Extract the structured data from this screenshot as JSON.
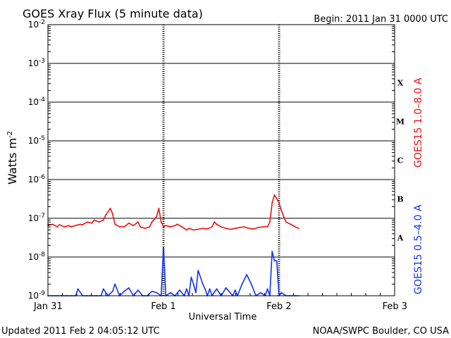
{
  "chart_data": {
    "type": "line",
    "title": "GOES Xray Flux (5 minute data)",
    "begin_label": "Begin:  2011 Jan 31 0000 UTC",
    "xlabel": "Universal Time",
    "ylabel": "Watts m",
    "ylabel_superscript": "-2",
    "yscale": "log",
    "ylim": [
      1e-09,
      0.01
    ],
    "xlim_days": [
      0,
      3
    ],
    "x_tick_labels": [
      "Jan 31",
      "Feb 1",
      "Feb 2",
      "Feb 3"
    ],
    "y_tick_labels": [
      {
        "base": "10",
        "exp": "-2"
      },
      {
        "base": "10",
        "exp": "-3"
      },
      {
        "base": "10",
        "exp": "-4"
      },
      {
        "base": "10",
        "exp": "-5"
      },
      {
        "base": "10",
        "exp": "-6"
      },
      {
        "base": "10",
        "exp": "-7"
      },
      {
        "base": "10",
        "exp": "-8"
      },
      {
        "base": "10",
        "exp": "-9"
      }
    ],
    "flare_classes": [
      "X",
      "M",
      "C",
      "B",
      "A"
    ],
    "grid": true,
    "series": [
      {
        "name": "GOES15 1.0–8.0 A",
        "color": "#ee1111",
        "x": [
          0.0,
          0.04,
          0.08,
          0.1,
          0.14,
          0.18,
          0.2,
          0.24,
          0.28,
          0.3,
          0.34,
          0.38,
          0.4,
          0.44,
          0.48,
          0.5,
          0.54,
          0.56,
          0.58,
          0.62,
          0.66,
          0.7,
          0.74,
          0.78,
          0.8,
          0.84,
          0.88,
          0.9,
          0.94,
          0.96,
          0.98,
          1.0,
          1.02,
          1.06,
          1.1,
          1.12,
          1.16,
          1.2,
          1.22,
          1.26,
          1.3,
          1.34,
          1.38,
          1.42,
          1.44,
          1.46,
          1.5,
          1.54,
          1.58,
          1.62,
          1.66,
          1.7,
          1.74,
          1.78,
          1.82,
          1.86,
          1.9,
          1.92,
          1.94,
          1.96,
          1.98,
          2.0,
          2.02,
          2.04,
          2.06,
          2.1,
          2.14,
          2.17
        ],
        "y": [
          6.5e-08,
          7e-08,
          6e-08,
          6.8e-08,
          6e-08,
          6.5e-08,
          6e-08,
          6.5e-08,
          7e-08,
          6.8e-08,
          8e-08,
          7.5e-08,
          9e-08,
          8e-08,
          9e-08,
          1.2e-07,
          1.8e-07,
          1.3e-07,
          7e-08,
          6e-08,
          6e-08,
          7.5e-08,
          6.5e-08,
          8e-08,
          6e-08,
          5.5e-08,
          6e-08,
          8e-08,
          1.1e-07,
          1.8e-07,
          8e-08,
          6e-08,
          6.5e-08,
          6e-08,
          6.5e-08,
          7e-08,
          6e-08,
          5e-08,
          5.5e-08,
          5e-08,
          5.2e-08,
          5.5e-08,
          5.3e-08,
          6e-08,
          8e-08,
          7e-08,
          6e-08,
          5.5e-08,
          5.2e-08,
          5.5e-08,
          5.8e-08,
          6e-08,
          5.5e-08,
          5.3e-08,
          5.8e-08,
          6e-08,
          6e-08,
          8e-08,
          2.5e-07,
          4e-07,
          3.2e-07,
          2.5e-07,
          1.6e-07,
          1.1e-07,
          8e-08,
          7e-08,
          6e-08,
          5.5e-08
        ]
      },
      {
        "name": "GOES15 0.5–4.0 A",
        "color": "#1133ee",
        "x": [
          0.0,
          0.04,
          0.08,
          0.12,
          0.16,
          0.2,
          0.24,
          0.26,
          0.3,
          0.34,
          0.38,
          0.42,
          0.46,
          0.48,
          0.52,
          0.56,
          0.58,
          0.62,
          0.66,
          0.7,
          0.74,
          0.78,
          0.82,
          0.86,
          0.9,
          0.94,
          0.98,
          1.0,
          1.02,
          1.06,
          1.1,
          1.14,
          1.18,
          1.2,
          1.22,
          1.24,
          1.26,
          1.28,
          1.3,
          1.32,
          1.34,
          1.36,
          1.38,
          1.4,
          1.42,
          1.46,
          1.5,
          1.54,
          1.6,
          1.62,
          1.64,
          1.68,
          1.72,
          1.76,
          1.8,
          1.84,
          1.88,
          1.9,
          1.92,
          1.94,
          1.96,
          1.98,
          2.0,
          2.02,
          2.06,
          2.1,
          2.14,
          2.17
        ],
        "y": [
          1e-09,
          1e-09,
          1e-09,
          1e-09,
          1e-09,
          1e-09,
          1e-09,
          1.5e-09,
          1e-09,
          1e-09,
          1e-09,
          1e-09,
          1e-09,
          1.5e-09,
          1e-09,
          1.3e-09,
          2e-09,
          1e-09,
          1.3e-09,
          1.6e-09,
          1e-09,
          1.4e-09,
          1e-09,
          1e-09,
          1.3e-09,
          1.2e-09,
          1e-09,
          1.8e-08,
          1e-09,
          1.2e-09,
          1e-09,
          1.4e-09,
          1e-09,
          1.5e-09,
          1e-09,
          3e-09,
          2e-09,
          1.2e-09,
          4.5e-09,
          3e-09,
          2e-09,
          1.5e-09,
          1e-09,
          1.5e-09,
          1e-09,
          1.5e-09,
          1e-09,
          1.6e-09,
          1e-09,
          1.4e-09,
          1e-09,
          2e-09,
          3.5e-09,
          2e-09,
          1e-09,
          1.2e-09,
          1e-09,
          1.5e-09,
          1e-09,
          1.4e-08,
          8e-09,
          8e-09,
          1e-09,
          1.2e-09,
          1e-09,
          1e-09,
          1e-09,
          1e-09
        ]
      }
    ]
  },
  "footer": {
    "updated": "Updated 2011 Feb  2 04:05:12 UTC",
    "credit": "NOAA/SWPC Boulder, CO USA"
  }
}
